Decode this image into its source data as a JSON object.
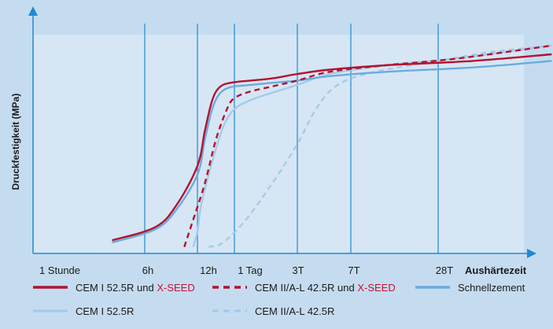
{
  "chart_data": {
    "type": "line",
    "title": "",
    "ylabel": "Druckfestigkeit (MPa)",
    "xlabel": "Aushärtezeit",
    "x_ticks": [
      "1 Stunde",
      "6h",
      "12h",
      "1 Tag",
      "3T",
      "7T",
      "28T"
    ],
    "grid": true,
    "legend_position": "bottom",
    "series": [
      {
        "name": "CEM I 52.5R und X-SEED",
        "label_parts": [
          "CEM I 52.5R und ",
          "X-SEED"
        ],
        "color": "#b5122d",
        "style": "solid",
        "x": [
          0.66,
          1.2,
          1.6,
          2.0,
          2.2,
          2.4,
          2.6,
          2.9,
          3.25,
          3.6,
          4.0,
          4.6,
          5.4,
          6.4,
          7.3
        ],
        "y": [
          0.06,
          0.12,
          0.22,
          0.4,
          0.56,
          0.7,
          0.76,
          0.78,
          0.79,
          0.8,
          0.82,
          0.84,
          0.86,
          0.88,
          0.91
        ]
      },
      {
        "name": "CEM II/A-L 42.5R und X-SEED",
        "label_parts": [
          "CEM II/A-L 42.5R und ",
          "X-SEED"
        ],
        "color": "#b5122d",
        "style": "dashed",
        "x": [
          1.75,
          1.9,
          2.2,
          2.5,
          2.8,
          3.0,
          3.25,
          3.55,
          4.0,
          4.6,
          5.4,
          6.2,
          7.3
        ],
        "y": [
          0.03,
          0.14,
          0.32,
          0.52,
          0.66,
          0.71,
          0.74,
          0.76,
          0.79,
          0.83,
          0.86,
          0.89,
          0.95
        ]
      },
      {
        "name": "Schnellzement",
        "label_parts": [
          "Schnellzement"
        ],
        "color": "#6cabdd",
        "style": "solid",
        "x": [
          0.66,
          1.2,
          1.6,
          2.0,
          2.2,
          2.4,
          2.6,
          2.9,
          3.25,
          3.6,
          4.0,
          4.6,
          5.4,
          6.4,
          7.3
        ],
        "y": [
          0.05,
          0.11,
          0.2,
          0.36,
          0.52,
          0.66,
          0.73,
          0.76,
          0.77,
          0.78,
          0.79,
          0.81,
          0.83,
          0.85,
          0.88
        ]
      },
      {
        "name": "CEM I 52.5R",
        "label_parts": [
          "CEM I 52.5R"
        ],
        "color": "#a5cbe9",
        "style": "solid",
        "x": [
          1.92,
          2.0,
          2.1,
          2.4,
          2.7,
          3.0,
          3.25,
          3.55,
          4.0,
          4.6,
          5.4,
          6.2,
          7.3
        ],
        "y": [
          0.03,
          0.1,
          0.22,
          0.42,
          0.58,
          0.66,
          0.7,
          0.73,
          0.77,
          0.82,
          0.86,
          0.89,
          0.95
        ]
      },
      {
        "name": "CEM II/A-L 42.5R",
        "label_parts": [
          "CEM II/A-L 42.5R"
        ],
        "color": "#a5cbe9",
        "style": "dashed",
        "x": [
          2.3,
          2.6,
          2.9,
          3.2,
          3.6,
          4.0,
          4.3,
          4.6,
          5.0,
          5.4,
          6.0,
          6.6,
          7.3
        ],
        "y": [
          0.03,
          0.04,
          0.08,
          0.16,
          0.32,
          0.5,
          0.64,
          0.74,
          0.8,
          0.84,
          0.88,
          0.92,
          0.95
        ]
      }
    ]
  }
}
